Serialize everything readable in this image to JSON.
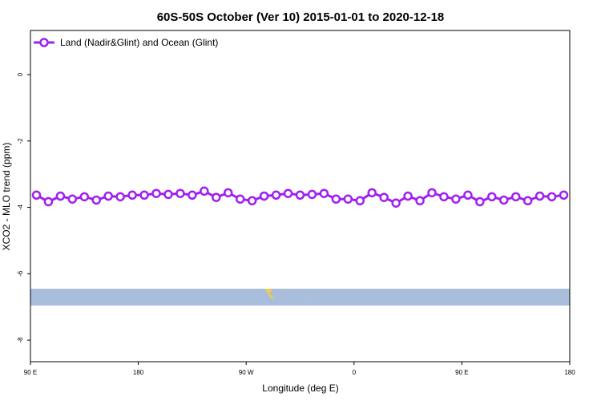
{
  "chart_data": {
    "type": "line",
    "title": "60S-50S October (Ver 10)   2015-01-01 to 2020-12-18",
    "xlabel": "Longitude (deg E)",
    "ylabel": "XCO2 - MLO trend (ppm)",
    "xlim": [
      90,
      540
    ],
    "ylim": [
      -8.65,
      1.33
    ],
    "xticks": [
      {
        "value": 90,
        "label": "90 E"
      },
      {
        "value": 180,
        "label": "180"
      },
      {
        "value": 270,
        "label": "90 W"
      },
      {
        "value": 360,
        "label": "0"
      },
      {
        "value": 450,
        "label": "90 E"
      },
      {
        "value": 540,
        "label": "180"
      }
    ],
    "yticks": [
      0,
      -2,
      -4,
      -6,
      -8
    ],
    "legend": "top-left",
    "x": [
      95,
      105,
      115,
      125,
      135,
      145,
      155,
      165,
      175,
      185,
      195,
      205,
      215,
      225,
      235,
      245,
      255,
      265,
      275,
      285,
      295,
      305,
      315,
      325,
      335,
      345,
      355,
      365,
      375,
      385,
      395,
      405,
      415,
      425,
      435,
      445,
      455,
      465,
      475,
      485,
      495,
      505,
      515,
      525,
      535
    ],
    "series": [
      {
        "name": "Land (Nadir&Glint) and Ocean (Glint)",
        "color": "#a020f0",
        "values": [
          -3.63,
          -3.83,
          -3.66,
          -3.75,
          -3.68,
          -3.78,
          -3.66,
          -3.68,
          -3.63,
          -3.63,
          -3.58,
          -3.61,
          -3.58,
          -3.63,
          -3.51,
          -3.7,
          -3.56,
          -3.75,
          -3.8,
          -3.66,
          -3.63,
          -3.58,
          -3.63,
          -3.61,
          -3.58,
          -3.75,
          -3.75,
          -3.8,
          -3.56,
          -3.7,
          -3.87,
          -3.66,
          -3.8,
          -3.56,
          -3.68,
          -3.75,
          -3.63,
          -3.83,
          -3.68,
          -3.78,
          -3.68,
          -3.8,
          -3.66,
          -3.68,
          -3.63
        ]
      }
    ]
  }
}
